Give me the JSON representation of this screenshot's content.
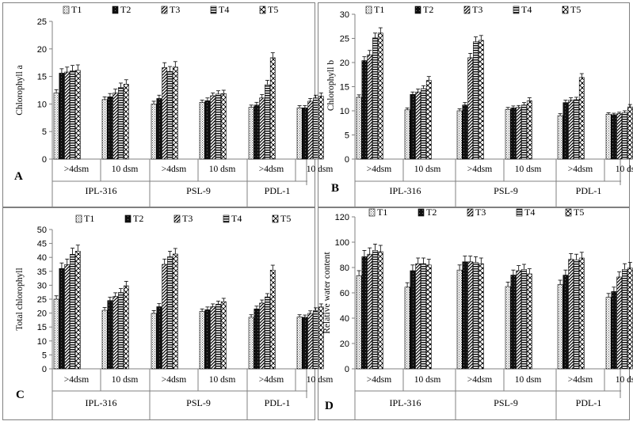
{
  "chart_data": [
    {
      "panel": "A",
      "type": "bar",
      "ylabel": "Chlorophyll a",
      "ylim": [
        0,
        25
      ],
      "yticks": [
        0,
        5,
        10,
        15,
        20,
        25
      ],
      "legend": [
        "T1",
        "T2",
        "T3",
        "T4",
        "T5"
      ],
      "groups": [
        {
          "name": "IPL-316",
          "conditions": [
            {
              "label": ">4dsm",
              "values": [
                12.0,
                15.6,
                15.8,
                16.0,
                16.1
              ],
              "errors": [
                0.6,
                0.8,
                0.9,
                1.0,
                1.0
              ]
            },
            {
              "label": "10 dsm",
              "values": [
                10.8,
                11.3,
                12.0,
                13.0,
                13.6
              ],
              "errors": [
                0.5,
                0.6,
                0.7,
                0.8,
                0.8
              ]
            }
          ]
        },
        {
          "name": "PSL-9",
          "conditions": [
            {
              "label": ">4dsm",
              "values": [
                10.0,
                11.0,
                16.6,
                15.9,
                16.7
              ],
              "errors": [
                0.5,
                0.6,
                0.9,
                0.9,
                1.0
              ]
            },
            {
              "label": "10 dsm",
              "values": [
                10.3,
                10.6,
                11.5,
                11.8,
                11.9
              ],
              "errors": [
                0.4,
                0.5,
                0.5,
                0.6,
                0.6
              ]
            }
          ]
        },
        {
          "name": "PDL-1",
          "conditions": [
            {
              "label": ">4dsm",
              "values": [
                9.4,
                9.8,
                11.1,
                13.5,
                18.4
              ],
              "errors": [
                0.4,
                0.5,
                0.6,
                0.8,
                0.9
              ]
            },
            {
              "label": "10 dsm",
              "values": [
                9.3,
                9.3,
                10.5,
                11.1,
                11.4
              ],
              "errors": [
                0.4,
                0.4,
                0.5,
                0.5,
                0.6
              ]
            }
          ]
        }
      ]
    },
    {
      "panel": "B",
      "type": "bar",
      "ylabel": "Chlorophyll b",
      "ylim": [
        0,
        30
      ],
      "yticks": [
        0,
        5,
        10,
        15,
        20,
        25,
        30
      ],
      "legend": [
        "T1",
        "T2",
        "T3",
        "T4",
        "T5"
      ],
      "groups": [
        {
          "name": "IPL-316",
          "conditions": [
            {
              "label": ">4dsm",
              "values": [
                12.8,
                20.4,
                21.6,
                25.1,
                26.1
              ],
              "errors": [
                0.5,
                0.8,
                0.9,
                1.0,
                1.1
              ]
            },
            {
              "label": "10 dsm",
              "values": [
                10.2,
                13.4,
                13.9,
                14.6,
                16.3
              ],
              "errors": [
                0.4,
                0.5,
                0.6,
                0.6,
                0.8
              ]
            }
          ]
        },
        {
          "name": "PSL-9",
          "conditions": [
            {
              "label": ">4dsm",
              "values": [
                10.0,
                11.2,
                21.0,
                24.3,
                24.6
              ],
              "errors": [
                0.4,
                0.5,
                0.9,
                1.0,
                1.0
              ]
            },
            {
              "label": "10 dsm",
              "values": [
                10.3,
                10.6,
                10.7,
                11.2,
                12.1
              ],
              "errors": [
                0.4,
                0.4,
                0.4,
                0.5,
                0.6
              ]
            }
          ]
        },
        {
          "name": "PDL-1",
          "conditions": [
            {
              "label": ">4dsm",
              "values": [
                9.0,
                11.7,
                12.2,
                12.3,
                16.9
              ],
              "errors": [
                0.4,
                0.5,
                0.5,
                0.5,
                0.8
              ]
            },
            {
              "label": "10 dsm",
              "values": [
                9.3,
                9.2,
                9.4,
                9.6,
                10.8
              ],
              "errors": [
                0.3,
                0.3,
                0.3,
                0.4,
                0.5
              ]
            }
          ]
        }
      ]
    },
    {
      "panel": "C",
      "type": "bar",
      "ylabel": "Total chlorophyll",
      "ylim": [
        0,
        50
      ],
      "yticks": [
        0,
        5,
        10,
        15,
        20,
        25,
        30,
        35,
        40,
        45,
        50
      ],
      "legend": [
        "T1",
        "T2",
        "T3",
        "T4",
        "T5"
      ],
      "groups": [
        {
          "name": "IPL-316",
          "conditions": [
            {
              "label": ">4dsm",
              "values": [
                25.0,
                36.0,
                37.4,
                41.1,
                42.2
              ],
              "errors": [
                1.2,
                2.0,
                2.0,
                2.2,
                2.2
              ]
            },
            {
              "label": "10 dsm",
              "values": [
                21.0,
                24.5,
                26.0,
                27.4,
                29.8
              ],
              "errors": [
                1.0,
                1.2,
                1.3,
                1.4,
                1.6
              ]
            }
          ]
        },
        {
          "name": "PSL-9",
          "conditions": [
            {
              "label": ">4dsm",
              "values": [
                19.9,
                22.3,
                37.5,
                40.2,
                41.2
              ],
              "errors": [
                1.0,
                1.1,
                1.9,
                2.0,
                2.0
              ]
            },
            {
              "label": "10 dsm",
              "values": [
                20.6,
                21.2,
                22.3,
                23.2,
                24.1
              ],
              "errors": [
                0.9,
                1.0,
                1.0,
                1.1,
                1.2
              ]
            }
          ]
        },
        {
          "name": "PDL-1",
          "conditions": [
            {
              "label": ">4dsm",
              "values": [
                18.5,
                21.5,
                23.6,
                25.8,
                35.4
              ],
              "errors": [
                0.9,
                1.0,
                1.1,
                1.2,
                1.8
              ]
            },
            {
              "label": "10 dsm",
              "values": [
                18.6,
                18.5,
                19.9,
                20.9,
                22.2
              ],
              "errors": [
                0.8,
                0.8,
                0.9,
                1.0,
                1.1
              ]
            }
          ]
        }
      ]
    },
    {
      "panel": "D",
      "type": "bar",
      "ylabel": "Relative water content",
      "ylim": [
        0,
        120
      ],
      "yticks": [
        0,
        20,
        40,
        60,
        80,
        100,
        120
      ],
      "legend": [
        "T1",
        "T2",
        "T3",
        "T4",
        "T5"
      ],
      "groups": [
        {
          "name": "IPL-316",
          "conditions": [
            {
              "label": ">4dsm",
              "values": [
                73.5,
                88.5,
                90.5,
                93.5,
                92.5
              ],
              "errors": [
                4.0,
                5.0,
                5.0,
                5.0,
                5.0
              ]
            },
            {
              "label": "10 dsm",
              "values": [
                64.5,
                77.5,
                83.0,
                83.0,
                82.0
              ],
              "errors": [
                3.5,
                4.5,
                4.5,
                4.5,
                4.5
              ]
            }
          ]
        },
        {
          "name": "PSL-9",
          "conditions": [
            {
              "label": ">4dsm",
              "values": [
                78.0,
                84.5,
                84.5,
                84.0,
                83.0
              ],
              "errors": [
                4.0,
                4.5,
                4.5,
                4.5,
                4.5
              ]
            },
            {
              "label": "10 dsm",
              "values": [
                65.0,
                74.0,
                77.5,
                78.5,
                75.0
              ],
              "errors": [
                3.5,
                4.0,
                4.0,
                4.0,
                4.0
              ]
            }
          ]
        },
        {
          "name": "PDL-1",
          "conditions": [
            {
              "label": ">4dsm",
              "values": [
                66.5,
                74.0,
                86.5,
                86.0,
                87.5
              ],
              "errors": [
                3.5,
                4.0,
                4.5,
                4.5,
                4.5
              ]
            },
            {
              "label": "10 dsm",
              "values": [
                56.5,
                61.0,
                72.5,
                78.5,
                79.5
              ],
              "errors": [
                3.0,
                3.5,
                4.0,
                4.5,
                4.5
              ]
            }
          ]
        }
      ]
    }
  ]
}
